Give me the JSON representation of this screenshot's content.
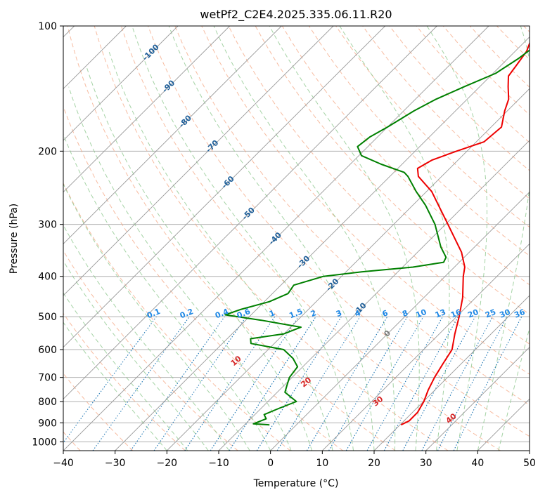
{
  "chart_data": {
    "type": "line",
    "chart_kind": "Skew-T log-P diagram",
    "title": "wetPf2_C2E4.2025.335.06.11.R20",
    "xlabel": "Temperature (°C)",
    "ylabel": "Pressure (hPa)",
    "xlim": [
      -40,
      50
    ],
    "ylim": [
      1050,
      100
    ],
    "x_ticks": [
      -40,
      -30,
      -20,
      -10,
      0,
      10,
      20,
      30,
      40,
      50
    ],
    "y_ticks": [
      100,
      200,
      300,
      400,
      500,
      600,
      700,
      800,
      900,
      1000
    ],
    "grid": true,
    "colors": {
      "temperature": "#ee0000",
      "dewpoint": "#008000",
      "isotherm": "#999999",
      "dry_adiabat": "#f4a582",
      "moist_adiabat": "#8fc88f",
      "mixing_ratio": "#1f77b4",
      "dry_adiabat_label": "#d62728",
      "mixing_ratio_label": "#1e88e5",
      "isotherm_label": "#1f5f99"
    },
    "series": [
      {
        "name": "Temperature",
        "color": "#ee0000",
        "points": [
          {
            "p": 910,
            "t": 20.2
          },
          {
            "p": 890,
            "t": 21.0
          },
          {
            "p": 850,
            "t": 21.0
          },
          {
            "p": 800,
            "t": 20.1
          },
          {
            "p": 750,
            "t": 18.7
          },
          {
            "p": 700,
            "t": 17.5
          },
          {
            "p": 650,
            "t": 16.5
          },
          {
            "p": 600,
            "t": 15.5
          },
          {
            "p": 550,
            "t": 13.0
          },
          {
            "p": 500,
            "t": 10.5
          },
          {
            "p": 450,
            "t": 7.5
          },
          {
            "p": 400,
            "t": 3.5
          },
          {
            "p": 380,
            "t": 2.0
          },
          {
            "p": 350,
            "t": -1.5
          },
          {
            "p": 300,
            "t": -9.5
          },
          {
            "p": 270,
            "t": -15.0
          },
          {
            "p": 250,
            "t": -19.0
          },
          {
            "p": 230,
            "t": -24.5
          },
          {
            "p": 220,
            "t": -26.2
          },
          {
            "p": 210,
            "t": -25.0
          },
          {
            "p": 200,
            "t": -22.0
          },
          {
            "p": 190,
            "t": -18.5
          },
          {
            "p": 175,
            "t": -18.0
          },
          {
            "p": 160,
            "t": -20.5
          },
          {
            "p": 150,
            "t": -22.0
          },
          {
            "p": 140,
            "t": -24.5
          },
          {
            "p": 132,
            "t": -26.5
          },
          {
            "p": 125,
            "t": -27.0
          },
          {
            "p": 115,
            "t": -27.8
          },
          {
            "p": 105,
            "t": -29.8
          },
          {
            "p": 100,
            "t": -31.5
          }
        ]
      },
      {
        "name": "Dewpoint",
        "color": "#008000",
        "points": [
          {
            "p": 910,
            "t": -5.2
          },
          {
            "p": 905,
            "t": -8.5
          },
          {
            "p": 880,
            "t": -7.0
          },
          {
            "p": 860,
            "t": -8.2
          },
          {
            "p": 830,
            "t": -6.5
          },
          {
            "p": 800,
            "t": -4.5
          },
          {
            "p": 760,
            "t": -8.5
          },
          {
            "p": 730,
            "t": -9.5
          },
          {
            "p": 700,
            "t": -10.5
          },
          {
            "p": 660,
            "t": -11.0
          },
          {
            "p": 630,
            "t": -13.5
          },
          {
            "p": 600,
            "t": -17.0
          },
          {
            "p": 580,
            "t": -24.5
          },
          {
            "p": 565,
            "t": -25.5
          },
          {
            "p": 550,
            "t": -20.0
          },
          {
            "p": 530,
            "t": -18.0
          },
          {
            "p": 510,
            "t": -27.0
          },
          {
            "p": 495,
            "t": -35.0
          },
          {
            "p": 480,
            "t": -33.0
          },
          {
            "p": 460,
            "t": -29.0
          },
          {
            "p": 440,
            "t": -27.0
          },
          {
            "p": 420,
            "t": -27.5
          },
          {
            "p": 400,
            "t": -23.5
          },
          {
            "p": 390,
            "t": -17.0
          },
          {
            "p": 380,
            "t": -8.0
          },
          {
            "p": 370,
            "t": -3.0
          },
          {
            "p": 360,
            "t": -3.5
          },
          {
            "p": 340,
            "t": -6.5
          },
          {
            "p": 300,
            "t": -12.0
          },
          {
            "p": 270,
            "t": -17.5
          },
          {
            "p": 250,
            "t": -22.0
          },
          {
            "p": 230,
            "t": -26.5
          },
          {
            "p": 225,
            "t": -28.0
          },
          {
            "p": 215,
            "t": -34.0
          },
          {
            "p": 205,
            "t": -39.5
          },
          {
            "p": 195,
            "t": -42.0
          },
          {
            "p": 185,
            "t": -41.5
          },
          {
            "p": 175,
            "t": -40.0
          },
          {
            "p": 160,
            "t": -38.0
          },
          {
            "p": 150,
            "t": -36.0
          },
          {
            "p": 140,
            "t": -33.0
          },
          {
            "p": 130,
            "t": -29.5
          },
          {
            "p": 120,
            "t": -28.0
          },
          {
            "p": 110,
            "t": -27.0
          },
          {
            "p": 100,
            "t": -27.0
          }
        ]
      }
    ],
    "isotherms": [
      -100,
      -90,
      -80,
      -70,
      -60,
      -50,
      -40,
      -30,
      -20,
      -10,
      0,
      10,
      20,
      30,
      40,
      50
    ],
    "isotherm_labels": [
      {
        "text": "-100",
        "t": -100
      },
      {
        "text": "-90",
        "t": -90
      },
      {
        "text": "-80",
        "t": -80
      },
      {
        "text": "-70",
        "t": -70
      },
      {
        "text": "-60",
        "t": -60
      },
      {
        "text": "-50",
        "t": -50
      },
      {
        "text": "-40",
        "t": -40
      },
      {
        "text": "-30",
        "t": -30
      },
      {
        "text": "-20",
        "t": -20
      },
      {
        "text": "-10",
        "t": -10
      },
      {
        "text": "0",
        "t": 0
      }
    ],
    "dry_adiabat_labels": [
      {
        "text": "10",
        "theta": 10
      },
      {
        "text": "20",
        "theta": 20
      },
      {
        "text": "30",
        "theta": 30
      },
      {
        "text": "40",
        "theta": 40
      }
    ],
    "mixing_ratio_labels": [
      {
        "text": "0.1",
        "w": 0.1
      },
      {
        "text": "0.2",
        "w": 0.2
      },
      {
        "text": "0.4",
        "w": 0.4
      },
      {
        "text": "0.6",
        "w": 0.6
      },
      {
        "text": "1",
        "w": 1
      },
      {
        "text": "1.5",
        "w": 1.5
      },
      {
        "text": "2",
        "w": 2
      },
      {
        "text": "3",
        "w": 3
      },
      {
        "text": "4",
        "w": 4
      },
      {
        "text": "6",
        "w": 6
      },
      {
        "text": "8",
        "w": 8
      },
      {
        "text": "10",
        "w": 10
      },
      {
        "text": "13",
        "w": 13
      },
      {
        "text": "16",
        "w": 16
      },
      {
        "text": "20",
        "w": 20
      },
      {
        "text": "25",
        "w": 25
      },
      {
        "text": "30",
        "w": 30
      },
      {
        "text": "36",
        "w": 36
      }
    ]
  }
}
